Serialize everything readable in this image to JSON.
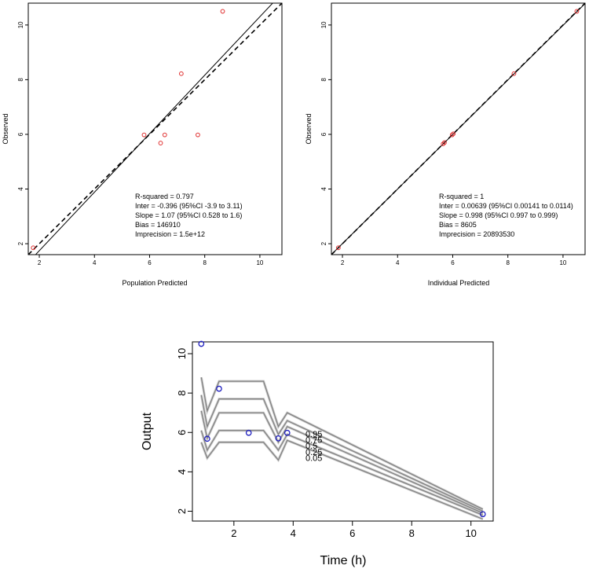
{
  "chart_data": [
    {
      "type": "scatter",
      "title": "",
      "xlabel": "Population Predicted",
      "ylabel": "Observed",
      "xlim": [
        1.6,
        10.8
      ],
      "ylim": [
        1.6,
        10.8
      ],
      "xticks": [
        2,
        4,
        6,
        8,
        10
      ],
      "yticks": [
        2,
        4,
        6,
        8,
        10
      ],
      "point_color": "#e03030",
      "points": [
        {
          "x": 1.78,
          "y": 1.85
        },
        {
          "x": 5.8,
          "y": 5.98
        },
        {
          "x": 6.4,
          "y": 5.68
        },
        {
          "x": 6.55,
          "y": 5.98
        },
        {
          "x": 7.15,
          "y": 8.22
        },
        {
          "x": 7.75,
          "y": 5.98
        },
        {
          "x": 8.65,
          "y": 10.5
        }
      ],
      "regression_line": {
        "intercept": -0.396,
        "slope": 1.07
      },
      "identity_line": {
        "intercept": 0,
        "slope": 1
      },
      "stats": [
        "R-squared = 0.797",
        "Inter = -0.396 (95%CI -3.9 to 3.11)",
        "Slope = 1.07 (95%CI 0.528 to 1.6)",
        "Bias = 146910",
        "Imprecision  = 1.5e+12"
      ]
    },
    {
      "type": "scatter",
      "title": "",
      "xlabel": "Individual Predicted",
      "ylabel": "Observed",
      "xlim": [
        1.6,
        10.8
      ],
      "ylim": [
        1.6,
        10.8
      ],
      "xticks": [
        2,
        4,
        6,
        8,
        10
      ],
      "yticks": [
        2,
        4,
        6,
        8,
        10
      ],
      "point_color": "#e03030",
      "points": [
        {
          "x": 1.85,
          "y": 1.85
        },
        {
          "x": 5.65,
          "y": 5.65
        },
        {
          "x": 5.7,
          "y": 5.7
        },
        {
          "x": 5.98,
          "y": 5.98
        },
        {
          "x": 6.02,
          "y": 6.02
        },
        {
          "x": 8.22,
          "y": 8.22
        },
        {
          "x": 10.5,
          "y": 10.5
        }
      ],
      "regression_line": {
        "intercept": 0.00639,
        "slope": 0.998
      },
      "identity_line": {
        "intercept": 0,
        "slope": 1
      },
      "stats": [
        "R-squared = 1",
        "Inter = 0.00639 (95%CI 0.00141 to 0.0114)",
        "Slope = 0.998 (95%CI 0.997 to 0.999)",
        "Bias = 8605",
        "Imprecision  = 20893530"
      ]
    },
    {
      "type": "line",
      "title": "",
      "xlabel": "Time (h)",
      "ylabel": "Output",
      "xlim": [
        0.6,
        10.75
      ],
      "ylim": [
        1.5,
        10.6
      ],
      "xticks": [
        2,
        4,
        6,
        8,
        10
      ],
      "yticks": [
        2,
        4,
        6,
        8,
        10
      ],
      "point_color": "#2020c0",
      "observed": [
        {
          "x": 0.9,
          "y": 10.5
        },
        {
          "x": 1.1,
          "y": 5.68
        },
        {
          "x": 1.5,
          "y": 8.22
        },
        {
          "x": 2.5,
          "y": 5.98
        },
        {
          "x": 3.5,
          "y": 5.7
        },
        {
          "x": 3.8,
          "y": 5.98
        },
        {
          "x": 10.4,
          "y": 1.85
        }
      ],
      "x": [
        0.9,
        1.1,
        1.5,
        3.0,
        3.5,
        3.8,
        10.4
      ],
      "series": [
        {
          "name": "0.95",
          "values": [
            8.8,
            7.1,
            8.6,
            8.6,
            6.3,
            7.0,
            2.1
          ]
        },
        {
          "name": "0.75",
          "values": [
            7.9,
            6.3,
            7.7,
            7.7,
            5.9,
            6.6,
            2.0
          ]
        },
        {
          "name": "0.5",
          "values": [
            7.1,
            5.7,
            7.0,
            7.0,
            5.5,
            6.3,
            1.9
          ]
        },
        {
          "name": "0.25",
          "values": [
            6.1,
            5.1,
            6.1,
            6.1,
            5.1,
            5.9,
            1.8
          ]
        },
        {
          "name": "0.05",
          "values": [
            5.5,
            4.7,
            5.5,
            5.5,
            4.6,
            5.6,
            1.6
          ]
        }
      ],
      "quantile_labels": [
        "0.95",
        "0.75",
        "0.5",
        "0.25",
        "0.05"
      ],
      "line_color": "#808080"
    }
  ]
}
